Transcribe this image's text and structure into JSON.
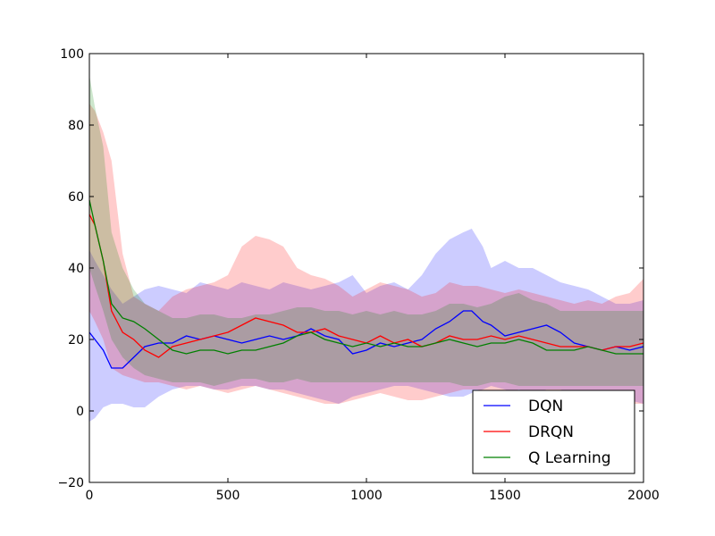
{
  "chart_data": {
    "type": "line",
    "title": "",
    "xlabel": "",
    "ylabel": "",
    "xlim": [
      0,
      2000
    ],
    "ylim": [
      -20,
      100
    ],
    "x_ticks": [
      0,
      500,
      1000,
      1500,
      2000
    ],
    "y_ticks": [
      -20,
      0,
      20,
      40,
      60,
      80,
      100
    ],
    "grid": false,
    "legend_position": "bottom-right",
    "series": [
      {
        "name": "DQN",
        "color": "#0000ff",
        "x": [
          0,
          20,
          50,
          80,
          120,
          160,
          200,
          250,
          300,
          350,
          400,
          450,
          500,
          550,
          600,
          650,
          700,
          750,
          800,
          850,
          900,
          950,
          1000,
          1050,
          1100,
          1150,
          1200,
          1250,
          1300,
          1350,
          1380,
          1420,
          1450,
          1500,
          1550,
          1600,
          1650,
          1700,
          1750,
          1800,
          1850,
          1900,
          1950,
          2000
        ],
        "values": [
          22,
          20,
          17,
          12,
          12,
          15,
          18,
          19,
          19,
          21,
          20,
          21,
          20,
          19,
          20,
          21,
          20,
          21,
          23,
          21,
          20,
          16,
          17,
          19,
          18,
          19,
          20,
          23,
          25,
          28,
          28,
          25,
          24,
          21,
          22,
          23,
          24,
          22,
          19,
          18,
          17,
          18,
          17,
          18
        ],
        "lower": [
          -3,
          -2,
          1,
          2,
          2,
          1,
          1,
          4,
          6,
          7,
          7,
          6,
          6,
          7,
          7,
          6,
          6,
          5,
          4,
          3,
          2,
          4,
          5,
          6,
          7,
          7,
          6,
          5,
          4,
          4,
          5,
          6,
          7,
          6,
          5,
          5,
          6,
          6,
          5,
          4,
          4,
          3,
          3,
          2
        ],
        "upper": [
          45,
          42,
          38,
          34,
          30,
          32,
          34,
          35,
          34,
          33,
          36,
          35,
          34,
          36,
          35,
          34,
          36,
          35,
          34,
          35,
          36,
          38,
          33,
          35,
          36,
          34,
          38,
          44,
          48,
          50,
          51,
          46,
          40,
          42,
          40,
          40,
          38,
          36,
          35,
          34,
          32,
          30,
          30,
          31
        ]
      },
      {
        "name": "DRQN",
        "color": "#ff0000",
        "x": [
          0,
          20,
          50,
          80,
          120,
          160,
          200,
          250,
          300,
          350,
          400,
          450,
          500,
          550,
          600,
          650,
          700,
          750,
          800,
          850,
          900,
          950,
          1000,
          1050,
          1100,
          1150,
          1200,
          1250,
          1300,
          1350,
          1400,
          1450,
          1500,
          1550,
          1600,
          1650,
          1700,
          1750,
          1800,
          1850,
          1900,
          1950,
          2000
        ],
        "values": [
          55,
          52,
          42,
          28,
          22,
          20,
          17,
          15,
          18,
          19,
          20,
          21,
          22,
          24,
          26,
          25,
          24,
          22,
          22,
          23,
          21,
          20,
          19,
          21,
          19,
          20,
          18,
          19,
          21,
          20,
          20,
          21,
          20,
          21,
          20,
          19,
          18,
          18,
          18,
          17,
          18,
          18,
          19
        ],
        "lower": [
          28,
          25,
          20,
          12,
          10,
          9,
          8,
          8,
          7,
          6,
          7,
          6,
          5,
          6,
          7,
          6,
          5,
          4,
          3,
          2,
          2,
          3,
          4,
          5,
          4,
          3,
          3,
          4,
          5,
          6,
          6,
          5,
          5,
          6,
          5,
          4,
          4,
          5,
          4,
          3,
          3,
          2,
          2
        ],
        "upper": [
          86,
          84,
          78,
          70,
          44,
          32,
          30,
          28,
          32,
          34,
          35,
          36,
          38,
          46,
          49,
          48,
          46,
          40,
          38,
          37,
          35,
          32,
          34,
          36,
          35,
          34,
          32,
          33,
          36,
          35,
          35,
          34,
          33,
          34,
          33,
          32,
          31,
          30,
          31,
          30,
          32,
          33,
          37
        ]
      },
      {
        "name": "Q Learning",
        "color": "#008000",
        "x": [
          0,
          20,
          50,
          80,
          120,
          160,
          200,
          250,
          300,
          350,
          400,
          450,
          500,
          550,
          600,
          650,
          700,
          750,
          800,
          850,
          900,
          950,
          1000,
          1050,
          1100,
          1150,
          1200,
          1250,
          1300,
          1350,
          1400,
          1450,
          1500,
          1550,
          1600,
          1650,
          1700,
          1750,
          1800,
          1850,
          1900,
          1950,
          2000
        ],
        "values": [
          59,
          52,
          42,
          30,
          26,
          25,
          23,
          20,
          17,
          16,
          17,
          17,
          16,
          17,
          17,
          18,
          19,
          21,
          22,
          20,
          19,
          18,
          19,
          18,
          19,
          18,
          18,
          19,
          20,
          19,
          18,
          19,
          19,
          20,
          19,
          17,
          17,
          17,
          18,
          17,
          16,
          16,
          16
        ],
        "lower": [
          40,
          35,
          28,
          20,
          15,
          12,
          10,
          9,
          8,
          8,
          8,
          7,
          8,
          9,
          9,
          8,
          8,
          9,
          8,
          8,
          8,
          8,
          8,
          8,
          8,
          8,
          8,
          8,
          8,
          7,
          7,
          8,
          8,
          7,
          7,
          7,
          7,
          7,
          7,
          7,
          7,
          7,
          7
        ],
        "upper": [
          94,
          85,
          74,
          50,
          40,
          34,
          30,
          28,
          26,
          26,
          27,
          27,
          26,
          26,
          27,
          27,
          28,
          29,
          29,
          28,
          28,
          27,
          28,
          27,
          28,
          27,
          27,
          28,
          30,
          30,
          29,
          30,
          32,
          33,
          31,
          30,
          28,
          28,
          28,
          28,
          28,
          28,
          28
        ]
      }
    ]
  }
}
